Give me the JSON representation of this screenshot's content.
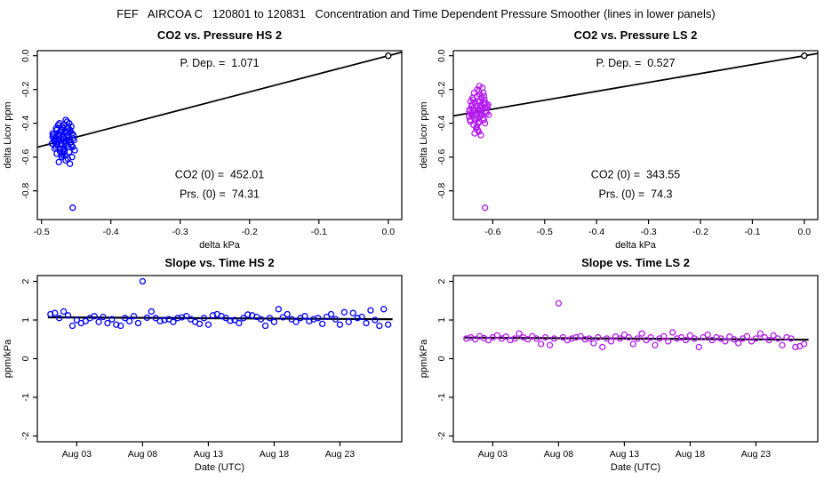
{
  "page": {
    "title": "FEF   AIRCOA C   120801 to 120831   Concentration and Time Dependent Pressure Smoother (lines in lower panels)"
  },
  "colors": {
    "hs_points": "#0000FF",
    "ls_points": "#B319EE",
    "line": "#000000",
    "axis": "#000000",
    "background": "#FFFFFF"
  },
  "chart_data": [
    {
      "id": "co2-vs-pressure-hs2",
      "type": "scatter",
      "row": "top",
      "title": "CO2 vs. Pressure HS 2",
      "xlabel": "delta kPa",
      "ylabel": "delta Licor ppm",
      "color_key": "hs_points",
      "xdomain": [
        -0.506,
        0.0195
      ],
      "ydomain": [
        -0.97,
        0.03
      ],
      "xticks": [
        -0.5,
        -0.4,
        -0.3,
        -0.2,
        -0.1,
        0.0
      ],
      "xtick_labels": [
        "-0.5",
        "-0.4",
        "-0.3",
        "-0.2",
        "-0.1",
        "0.0"
      ],
      "yticks": [
        0.0,
        -0.2,
        -0.4,
        -0.6,
        -0.8
      ],
      "ytick_labels": [
        "0.0",
        "-0.2",
        "-0.4",
        "-0.6",
        "-0.8"
      ],
      "annotations": [
        {
          "text": "P. Dep. =  1.071",
          "fx": 0.5,
          "fy": 0.095
        },
        {
          "text": "CO2 (0) =  452.01",
          "fx": 0.5,
          "fy": 0.755
        },
        {
          "text": "Prs. (0) =  74.31",
          "fx": 0.5,
          "fy": 0.87
        }
      ],
      "fit_line": {
        "x1": -0.506,
        "y1": -0.542,
        "x2": 0.0195,
        "y2": 0.0209,
        "width": 1.8
      },
      "zero_marker": {
        "x": 0.0,
        "y": 0.0
      },
      "points": [
        [
          -0.47,
          -0.42
        ],
        [
          -0.466,
          -0.45
        ],
        [
          -0.475,
          -0.48
        ],
        [
          -0.46,
          -0.5
        ],
        [
          -0.472,
          -0.52
        ],
        [
          -0.468,
          -0.55
        ],
        [
          -0.463,
          -0.47
        ],
        [
          -0.478,
          -0.44
        ],
        [
          -0.457,
          -0.53
        ],
        [
          -0.469,
          -0.58
        ],
        [
          -0.474,
          -0.4
        ],
        [
          -0.461,
          -0.43
        ],
        [
          -0.484,
          -0.46
        ],
        [
          -0.455,
          -0.49
        ],
        [
          -0.467,
          -0.51
        ],
        [
          -0.479,
          -0.54
        ],
        [
          -0.452,
          -0.56
        ],
        [
          -0.471,
          -0.6
        ],
        [
          -0.465,
          -0.38
        ],
        [
          -0.476,
          -0.41
        ],
        [
          -0.459,
          -0.44
        ],
        [
          -0.482,
          -0.5
        ],
        [
          -0.464,
          -0.53
        ],
        [
          -0.473,
          -0.57
        ],
        [
          -0.456,
          -0.46
        ],
        [
          -0.47,
          -0.48
        ],
        [
          -0.462,
          -0.61
        ],
        [
          -0.477,
          -0.52
        ],
        [
          -0.468,
          -0.43
        ],
        [
          -0.454,
          -0.47
        ],
        [
          -0.481,
          -0.55
        ],
        [
          -0.466,
          -0.59
        ],
        [
          -0.472,
          -0.45
        ],
        [
          -0.458,
          -0.51
        ],
        [
          -0.475,
          -0.63
        ],
        [
          -0.463,
          -0.39
        ],
        [
          -0.48,
          -0.49
        ],
        [
          -0.469,
          -0.56
        ],
        [
          -0.457,
          -0.42
        ],
        [
          -0.474,
          -0.47
        ],
        [
          -0.461,
          -0.54
        ],
        [
          -0.485,
          -0.52
        ],
        [
          -0.465,
          -0.62
        ],
        [
          -0.478,
          -0.58
        ],
        [
          -0.453,
          -0.5
        ],
        [
          -0.471,
          -0.44
        ],
        [
          -0.467,
          -0.49
        ],
        [
          -0.483,
          -0.47
        ],
        [
          -0.46,
          -0.57
        ],
        [
          -0.476,
          -0.5
        ],
        [
          -0.464,
          -0.46
        ],
        [
          -0.47,
          -0.53
        ],
        [
          -0.456,
          -0.6
        ],
        [
          -0.479,
          -0.43
        ],
        [
          -0.462,
          -0.48
        ],
        [
          -0.473,
          -0.55
        ],
        [
          -0.459,
          -0.64
        ],
        [
          -0.468,
          -0.41
        ],
        [
          -0.481,
          -0.51
        ],
        [
          -0.455,
          -0.54
        ],
        [
          -0.475,
          -0.46
        ],
        [
          -0.466,
          -0.52
        ],
        [
          -0.47,
          -0.59
        ],
        [
          -0.458,
          -0.45
        ],
        [
          -0.477,
          -0.53
        ],
        [
          -0.463,
          -0.5
        ],
        [
          -0.484,
          -0.48
        ],
        [
          -0.467,
          -0.57
        ],
        [
          -0.46,
          -0.4
        ],
        [
          -0.472,
          -0.49
        ],
        [
          -0.455,
          -0.9
        ]
      ]
    },
    {
      "id": "co2-vs-pressure-ls2",
      "type": "scatter",
      "row": "top",
      "title": "CO2 vs. Pressure LS 2",
      "xlabel": "delta kPa",
      "ylabel": "delta Licor ppm",
      "color_key": "ls_points",
      "xdomain": [
        -0.676,
        0.026
      ],
      "ydomain": [
        -0.97,
        0.03
      ],
      "xticks": [
        -0.6,
        -0.5,
        -0.4,
        -0.3,
        -0.2,
        -0.1,
        0.0
      ],
      "xtick_labels": [
        "-0.6",
        "-0.5",
        "-0.4",
        "-0.3",
        "-0.2",
        "-0.1",
        "0.0"
      ],
      "yticks": [
        0.0,
        -0.2,
        -0.4,
        -0.6,
        -0.8
      ],
      "ytick_labels": [
        "0.0",
        "-0.2",
        "-0.4",
        "-0.6",
        "-0.8"
      ],
      "annotations": [
        {
          "text": "P. Dep. =  0.527",
          "fx": 0.5,
          "fy": 0.095
        },
        {
          "text": "CO2 (0) =  343.55",
          "fx": 0.5,
          "fy": 0.755
        },
        {
          "text": "Prs. (0) =  74.3",
          "fx": 0.5,
          "fy": 0.87
        }
      ],
      "fit_line": {
        "x1": -0.676,
        "y1": -0.356,
        "x2": 0.026,
        "y2": 0.0137,
        "width": 1.8
      },
      "zero_marker": {
        "x": 0.0,
        "y": 0.0
      },
      "points": [
        [
          -0.63,
          -0.2
        ],
        [
          -0.625,
          -0.23
        ],
        [
          -0.638,
          -0.26
        ],
        [
          -0.618,
          -0.28
        ],
        [
          -0.632,
          -0.3
        ],
        [
          -0.627,
          -0.33
        ],
        [
          -0.641,
          -0.35
        ],
        [
          -0.615,
          -0.31
        ],
        [
          -0.635,
          -0.37
        ],
        [
          -0.622,
          -0.25
        ],
        [
          -0.645,
          -0.32
        ],
        [
          -0.628,
          -0.4
        ],
        [
          -0.612,
          -0.34
        ],
        [
          -0.636,
          -0.22
        ],
        [
          -0.624,
          -0.36
        ],
        [
          -0.64,
          -0.29
        ],
        [
          -0.617,
          -0.38
        ],
        [
          -0.631,
          -0.42
        ],
        [
          -0.626,
          -0.18
        ],
        [
          -0.643,
          -0.27
        ],
        [
          -0.62,
          -0.32
        ],
        [
          -0.634,
          -0.35
        ],
        [
          -0.61,
          -0.3
        ],
        [
          -0.629,
          -0.44
        ],
        [
          -0.638,
          -0.31
        ],
        [
          -0.616,
          -0.26
        ],
        [
          -0.633,
          -0.38
        ],
        [
          -0.623,
          -0.29
        ],
        [
          -0.646,
          -0.36
        ],
        [
          -0.627,
          -0.21
        ],
        [
          -0.613,
          -0.33
        ],
        [
          -0.637,
          -0.41
        ],
        [
          -0.625,
          -0.27
        ],
        [
          -0.642,
          -0.34
        ],
        [
          -0.619,
          -0.37
        ],
        [
          -0.63,
          -0.24
        ],
        [
          -0.608,
          -0.35
        ],
        [
          -0.635,
          -0.46
        ],
        [
          -0.621,
          -0.3
        ],
        [
          -0.644,
          -0.38
        ],
        [
          -0.628,
          -0.32
        ],
        [
          -0.614,
          -0.28
        ],
        [
          -0.639,
          -0.25
        ],
        [
          -0.626,
          -0.39
        ],
        [
          -0.632,
          -0.43
        ],
        [
          -0.618,
          -0.22
        ],
        [
          -0.636,
          -0.33
        ],
        [
          -0.624,
          -0.35
        ],
        [
          -0.611,
          -0.31
        ],
        [
          -0.641,
          -0.3
        ],
        [
          -0.629,
          -0.37
        ],
        [
          -0.615,
          -0.4
        ],
        [
          -0.634,
          -0.28
        ],
        [
          -0.622,
          -0.34
        ],
        [
          -0.645,
          -0.33
        ],
        [
          -0.627,
          -0.45
        ],
        [
          -0.62,
          -0.19
        ],
        [
          -0.638,
          -0.36
        ],
        [
          -0.625,
          -0.31
        ],
        [
          -0.609,
          -0.29
        ],
        [
          -0.631,
          -0.34
        ],
        [
          -0.617,
          -0.24
        ],
        [
          -0.643,
          -0.39
        ],
        [
          -0.628,
          -0.27
        ],
        [
          -0.623,
          -0.47
        ],
        [
          -0.615,
          -0.9
        ]
      ]
    },
    {
      "id": "slope-vs-time-hs2",
      "type": "scatter",
      "row": "bottom",
      "title": "Slope vs. Time HS 2",
      "xlabel": "Date (UTC)",
      "ylabel": "ppm/kPa",
      "color_key": "hs_points",
      "xdomain": [
        0,
        27.7
      ],
      "ydomain": [
        -2.15,
        2.15
      ],
      "xticks": [
        3,
        8,
        13,
        18,
        23
      ],
      "xtick_labels": [
        "Aug 03",
        "Aug 08",
        "Aug 13",
        "Aug 18",
        "Aug 23"
      ],
      "yticks": [
        -2,
        -1,
        0,
        1,
        2
      ],
      "ytick_labels": [
        "-2",
        "-1",
        "0",
        "1",
        "2"
      ],
      "annotations": [],
      "fit_line": {
        "x1": 0.8,
        "y1": 1.07,
        "x2": 27.0,
        "y2": 1.02,
        "width": 2.2
      },
      "zero_marker": null,
      "x_start": 1.0,
      "x_step": 0.3333,
      "values": [
        1.15,
        1.18,
        1.05,
        1.22,
        1.12,
        0.85,
        1.0,
        0.92,
        0.97,
        1.05,
        1.1,
        0.95,
        1.08,
        0.92,
        1.02,
        0.88,
        0.85,
        1.05,
        0.97,
        1.1,
        0.92,
        2.0,
        1.06,
        1.22,
        1.05,
        0.97,
        1.0,
        1.02,
        0.95,
        1.05,
        1.07,
        1.1,
        1.02,
        0.95,
        0.9,
        1.05,
        0.88,
        1.12,
        1.15,
        1.1,
        1.05,
        0.98,
        1.0,
        0.92,
        1.05,
        1.14,
        1.12,
        1.08,
        1.02,
        0.85,
        1.05,
        0.95,
        1.28,
        1.07,
        1.15,
        1.02,
        0.95,
        1.05,
        1.1,
        0.97,
        1.02,
        1.05,
        0.9,
        1.08,
        1.15,
        1.02,
        0.88,
        1.2,
        0.95,
        1.18,
        1.05,
        1.08,
        0.92,
        1.25,
        1.0,
        0.85,
        1.28,
        0.88
      ]
    },
    {
      "id": "slope-vs-time-ls2",
      "type": "scatter",
      "row": "bottom",
      "title": "Slope vs. Time LS 2",
      "xlabel": "Date (UTC)",
      "ylabel": "ppm/kPa",
      "color_key": "ls_points",
      "xdomain": [
        0,
        27.7
      ],
      "ydomain": [
        -2.15,
        2.15
      ],
      "xticks": [
        3,
        8,
        13,
        18,
        23
      ],
      "xtick_labels": [
        "Aug 03",
        "Aug 08",
        "Aug 13",
        "Aug 18",
        "Aug 23"
      ],
      "yticks": [
        -2,
        -1,
        0,
        1,
        2
      ],
      "ytick_labels": [
        "-2",
        "-1",
        "0",
        "1",
        "2"
      ],
      "annotations": [],
      "fit_line": {
        "x1": 0.8,
        "y1": 0.545,
        "x2": 27.0,
        "y2": 0.49,
        "width": 2.2
      },
      "zero_marker": null,
      "x_start": 1.0,
      "x_step": 0.3333,
      "values": [
        0.52,
        0.55,
        0.5,
        0.58,
        0.53,
        0.48,
        0.55,
        0.6,
        0.52,
        0.57,
        0.48,
        0.52,
        0.65,
        0.55,
        0.5,
        0.58,
        0.52,
        0.38,
        0.55,
        0.35,
        0.52,
        1.43,
        0.55,
        0.48,
        0.52,
        0.55,
        0.58,
        0.5,
        0.52,
        0.4,
        0.55,
        0.3,
        0.52,
        0.45,
        0.57,
        0.52,
        0.62,
        0.55,
        0.38,
        0.52,
        0.65,
        0.48,
        0.55,
        0.35,
        0.52,
        0.58,
        0.45,
        0.68,
        0.52,
        0.55,
        0.48,
        0.6,
        0.52,
        0.3,
        0.55,
        0.62,
        0.48,
        0.55,
        0.52,
        0.45,
        0.57,
        0.5,
        0.4,
        0.52,
        0.58,
        0.45,
        0.52,
        0.65,
        0.55,
        0.48,
        0.6,
        0.52,
        0.35,
        0.55,
        0.52,
        0.3,
        0.32,
        0.38
      ]
    }
  ]
}
